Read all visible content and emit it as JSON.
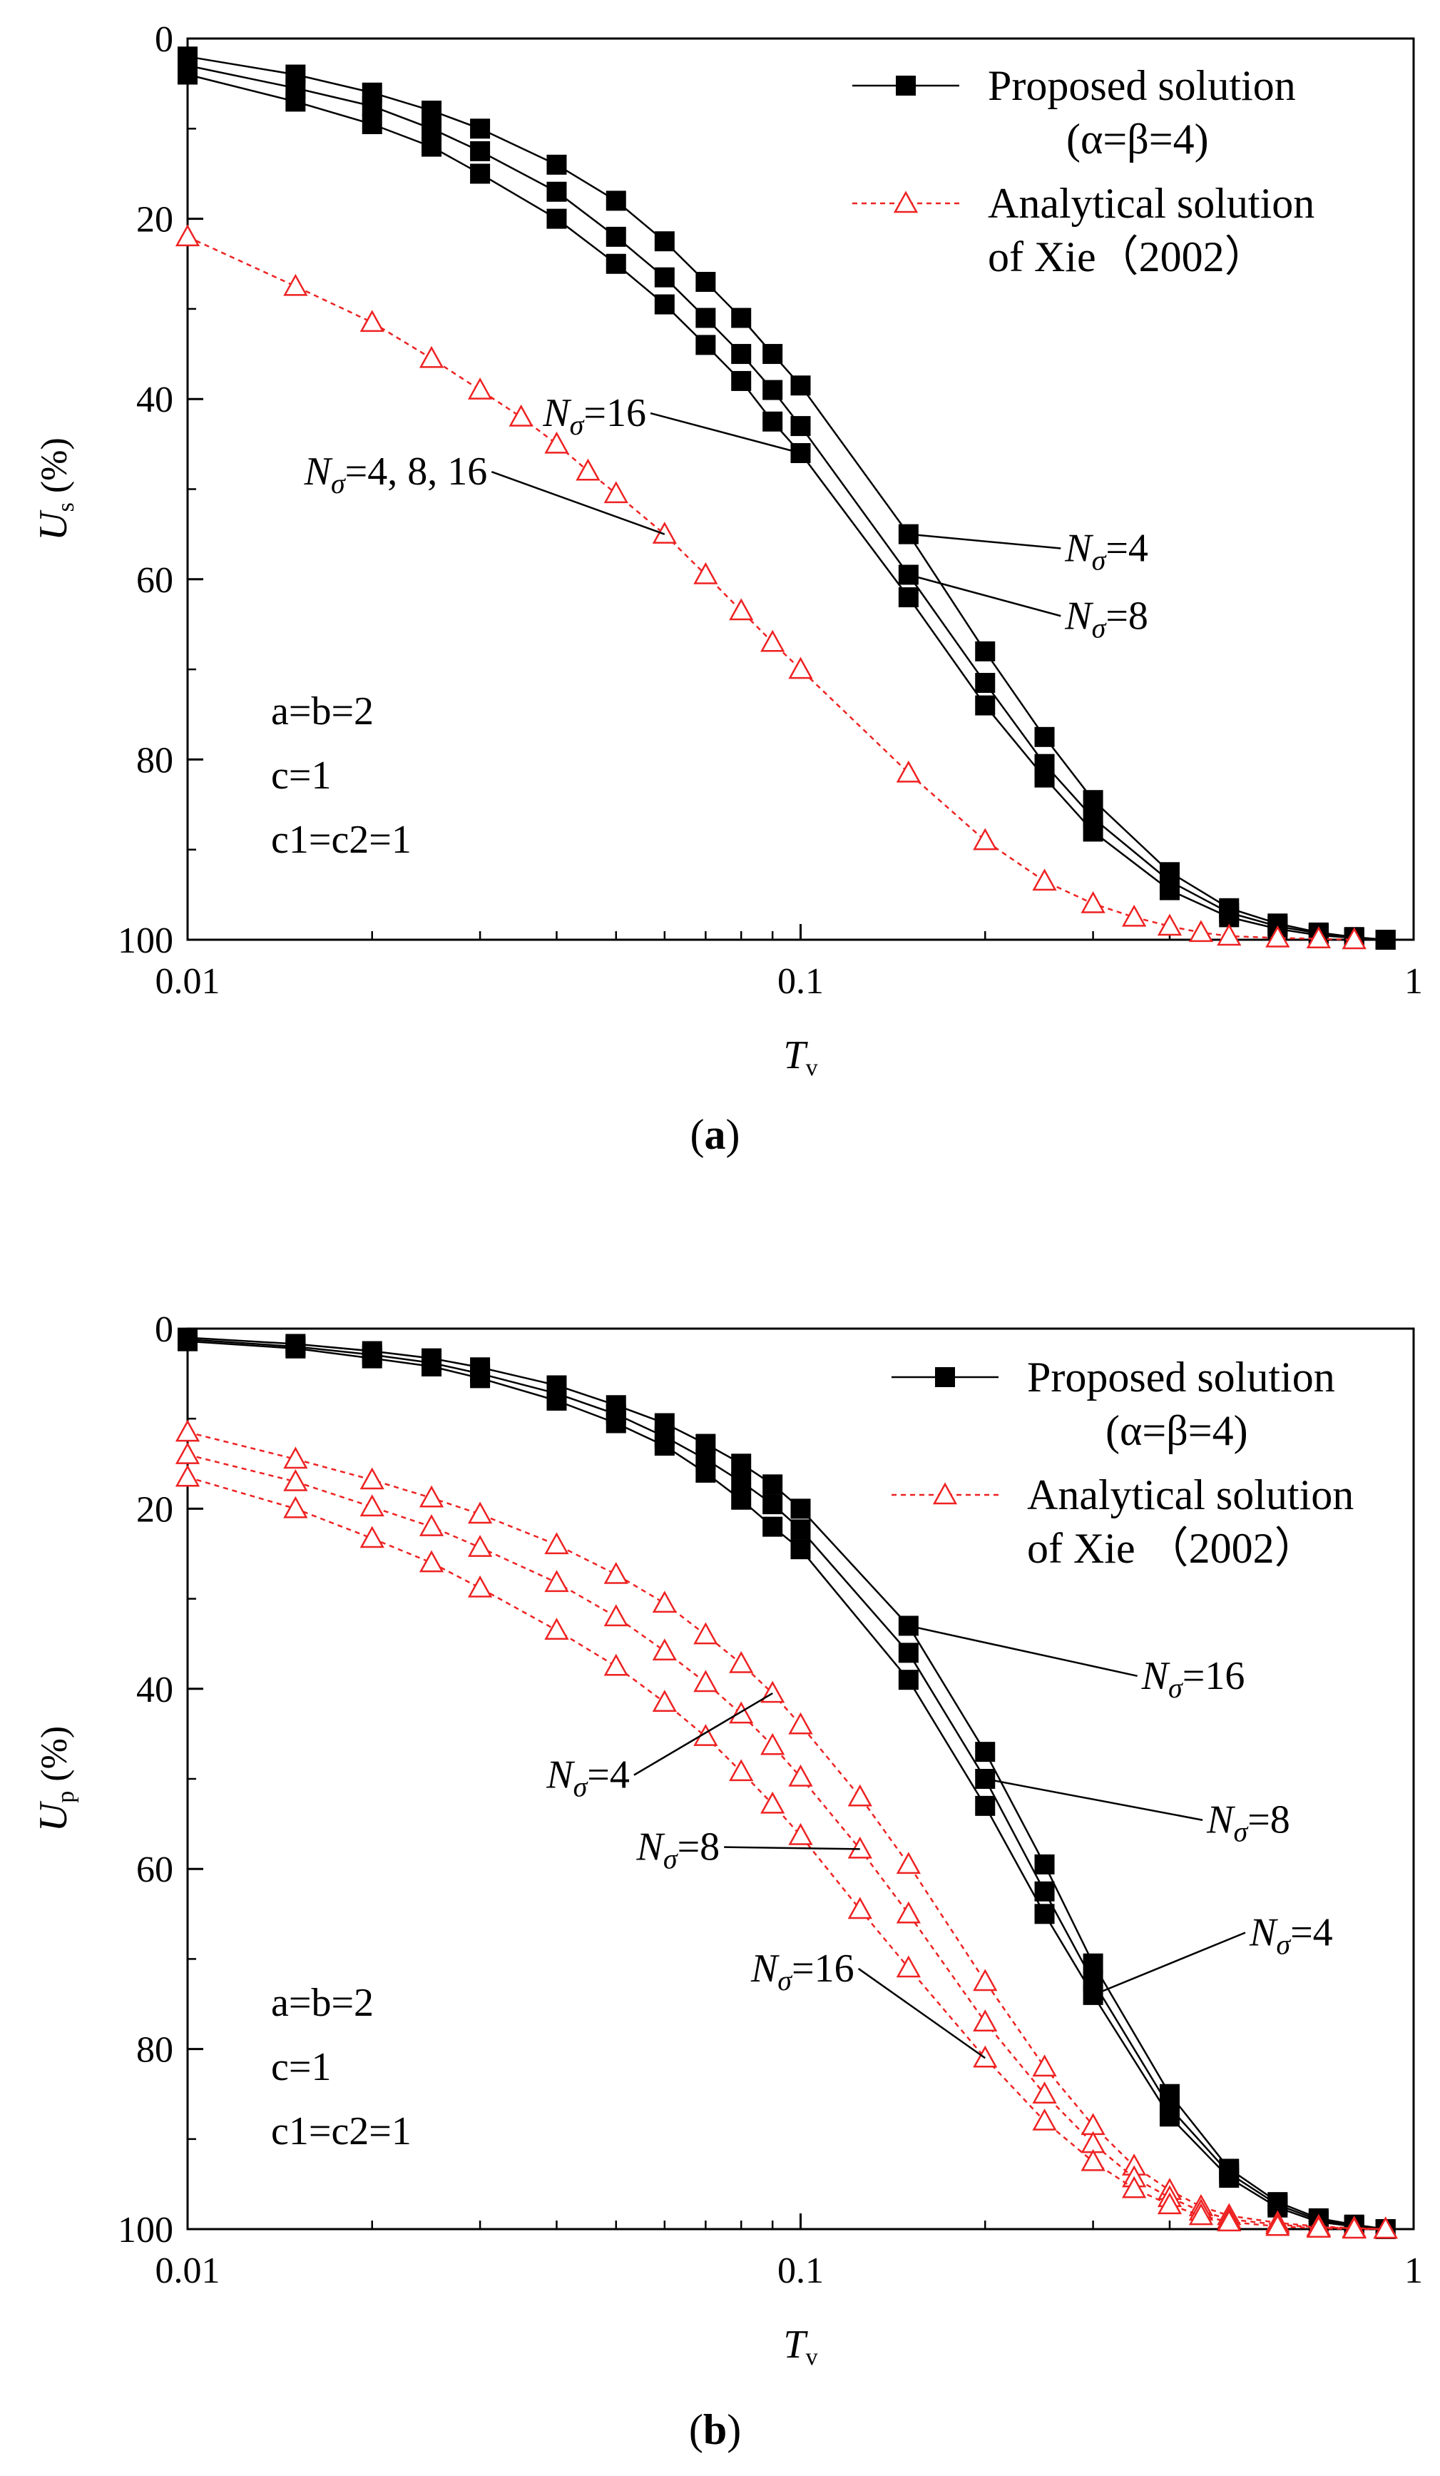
{
  "chart_data": [
    {
      "panel": "a",
      "type": "line",
      "caption": "(a)",
      "xscale": "log",
      "xlim": [
        0.01,
        1
      ],
      "ylim": [
        0,
        100
      ],
      "y_inverted": true,
      "xlabel": {
        "main": "T",
        "sub": "v"
      },
      "ylabel": {
        "main": "U",
        "sub": "s",
        "unit": "(%)"
      },
      "xticks": [
        {
          "v": 0.01,
          "label": "0.01"
        },
        {
          "v": 0.1,
          "label": "0.1"
        },
        {
          "v": 1,
          "label": "1"
        }
      ],
      "yticks": [
        {
          "v": 0,
          "label": "0"
        },
        {
          "v": 20,
          "label": "20"
        },
        {
          "v": 40,
          "label": "40"
        },
        {
          "v": 60,
          "label": "60"
        },
        {
          "v": 80,
          "label": "80"
        },
        {
          "v": 100,
          "label": "100"
        }
      ],
      "legend": [
        {
          "series": "proposed",
          "line1": "Proposed solution",
          "line2": "(α=β=4)"
        },
        {
          "series": "analytical",
          "line1": "Analytical solution",
          "line2": "of Xie（2002）"
        }
      ],
      "params": [
        "a=b=2",
        "c=1",
        "c1=c2=1"
      ],
      "series": [
        {
          "name": "Proposed Nσ=4",
          "style": "proposed",
          "x": [
            0.01,
            0.015,
            0.02,
            0.025,
            0.03,
            0.04,
            0.05,
            0.06,
            0.07,
            0.08,
            0.09,
            0.1,
            0.15,
            0.2,
            0.25,
            0.3,
            0.4,
            0.5,
            0.6,
            0.7,
            0.8,
            0.9
          ],
          "y": [
            2,
            4,
            6,
            8,
            10,
            14,
            18,
            22.5,
            27,
            31,
            35,
            38.5,
            55,
            68,
            77.5,
            84.5,
            92.5,
            96.5,
            98.2,
            99.2,
            99.7,
            100
          ]
        },
        {
          "name": "Proposed Nσ=8",
          "style": "proposed",
          "x": [
            0.01,
            0.015,
            0.02,
            0.025,
            0.03,
            0.04,
            0.05,
            0.06,
            0.07,
            0.08,
            0.09,
            0.1,
            0.15,
            0.2,
            0.25,
            0.3,
            0.4,
            0.5,
            0.6,
            0.7,
            0.8,
            0.9
          ],
          "y": [
            3,
            5.5,
            7.5,
            10,
            12.5,
            17,
            22,
            26.5,
            31,
            35,
            39,
            43,
            59.5,
            71.5,
            80.5,
            86.5,
            93.5,
            97,
            98.5,
            99.3,
            99.8,
            100
          ]
        },
        {
          "name": "Proposed Nσ=16",
          "style": "proposed",
          "x": [
            0.01,
            0.015,
            0.02,
            0.025,
            0.03,
            0.04,
            0.05,
            0.06,
            0.07,
            0.08,
            0.09,
            0.1,
            0.15,
            0.2,
            0.25,
            0.3,
            0.4,
            0.5,
            0.6,
            0.7,
            0.8,
            0.9
          ],
          "y": [
            4,
            7,
            9.5,
            12,
            15,
            20,
            25,
            29.5,
            34,
            38,
            42.5,
            46,
            62,
            74,
            82,
            88,
            94.5,
            97.5,
            98.8,
            99.5,
            99.8,
            100
          ]
        },
        {
          "name": "Analytical Nσ=4, 8, 16",
          "style": "analytical",
          "x": [
            0.01,
            0.015,
            0.02,
            0.025,
            0.03,
            0.035,
            0.04,
            0.045,
            0.05,
            0.06,
            0.07,
            0.08,
            0.09,
            0.1,
            0.15,
            0.2,
            0.25,
            0.3,
            0.35,
            0.4,
            0.45,
            0.5,
            0.6,
            0.7,
            0.8
          ],
          "y": [
            22,
            27.5,
            31.5,
            35.5,
            39,
            42,
            45,
            48,
            50.5,
            55,
            59.5,
            63.5,
            67,
            70,
            81.5,
            89,
            93.5,
            96,
            97.5,
            98.5,
            99.2,
            99.6,
            99.8,
            99.9,
            100
          ]
        }
      ],
      "annotations": [
        {
          "id": "a-ann-16",
          "N": "N",
          "sub": "σ",
          "text": "=16",
          "target_series": 2,
          "target_x": 0.1,
          "text_x": 0.038,
          "text_y": 43
        },
        {
          "id": "a-ann-ana",
          "N": "N",
          "sub": "σ",
          "text": "=4, 8, 16",
          "target_series": 3,
          "target_x": 0.06,
          "text_x": 0.0155,
          "text_y": 49.5
        },
        {
          "id": "a-ann-4",
          "N": "N",
          "sub": "σ",
          "text": "=4",
          "target_series": 0,
          "target_x": 0.15,
          "text_x": 0.27,
          "text_y": 58
        },
        {
          "id": "a-ann-8",
          "N": "N",
          "sub": "σ",
          "text": "=8",
          "target_series": 1,
          "target_x": 0.15,
          "text_x": 0.27,
          "text_y": 65.5
        }
      ]
    },
    {
      "panel": "b",
      "type": "line",
      "caption": "(b)",
      "xscale": "log",
      "xlim": [
        0.01,
        1
      ],
      "ylim": [
        0,
        100
      ],
      "y_inverted": true,
      "xlabel": {
        "main": "T",
        "sub": "v"
      },
      "ylabel": {
        "main": "U",
        "sub": "p",
        "unit": "(%)"
      },
      "xticks": [
        {
          "v": 0.01,
          "label": "0.01"
        },
        {
          "v": 0.1,
          "label": "0.1"
        },
        {
          "v": 1,
          "label": "1"
        }
      ],
      "yticks": [
        {
          "v": 0,
          "label": "0"
        },
        {
          "v": 20,
          "label": "20"
        },
        {
          "v": 40,
          "label": "40"
        },
        {
          "v": 60,
          "label": "60"
        },
        {
          "v": 80,
          "label": "80"
        },
        {
          "v": 100,
          "label": "100"
        }
      ],
      "legend": [
        {
          "series": "proposed",
          "line1": "Proposed solution",
          "line2": "(α=β=4)"
        },
        {
          "series": "analytical",
          "line1": "Analytical solution",
          "line2": "of Xie （2002）"
        }
      ],
      "params": [
        "a=b=2",
        "c=1",
        "c1=c2=1"
      ],
      "series": [
        {
          "name": "Proposed Nσ=16",
          "style": "proposed",
          "x": [
            0.01,
            0.015,
            0.02,
            0.025,
            0.03,
            0.04,
            0.05,
            0.06,
            0.07,
            0.08,
            0.09,
            0.1,
            0.15,
            0.2,
            0.25,
            0.3,
            0.4,
            0.5,
            0.6,
            0.7,
            0.8,
            0.9
          ],
          "y": [
            1,
            1.7,
            2.5,
            3.3,
            4.3,
            6.3,
            8.5,
            10.5,
            12.8,
            15,
            17.3,
            20,
            33,
            47,
            59.5,
            70.5,
            85,
            93.3,
            97,
            98.8,
            99.5,
            100
          ]
        },
        {
          "name": "Proposed Nσ=8",
          "style": "proposed",
          "x": [
            0.01,
            0.015,
            0.02,
            0.025,
            0.03,
            0.04,
            0.05,
            0.06,
            0.07,
            0.08,
            0.09,
            0.1,
            0.15,
            0.2,
            0.25,
            0.3,
            0.4,
            0.5,
            0.6,
            0.7,
            0.8,
            0.9
          ],
          "y": [
            1.2,
            2,
            2.9,
            3.8,
            5,
            7.2,
            9.5,
            12,
            14.5,
            17,
            19.5,
            22.3,
            36,
            50,
            62.5,
            72.5,
            86.5,
            93.8,
            97.3,
            99,
            99.6,
            100
          ]
        },
        {
          "name": "Proposed Nσ=4",
          "style": "proposed",
          "x": [
            0.01,
            0.015,
            0.02,
            0.025,
            0.03,
            0.04,
            0.05,
            0.06,
            0.07,
            0.08,
            0.09,
            0.1,
            0.15,
            0.2,
            0.25,
            0.3,
            0.4,
            0.5,
            0.6,
            0.7,
            0.8,
            0.9
          ],
          "y": [
            1.4,
            2.2,
            3.3,
            4.2,
            5.5,
            8,
            10.5,
            13,
            16,
            19,
            22,
            24.5,
            39,
            53,
            65,
            74,
            87.5,
            94.3,
            97.6,
            99.2,
            99.7,
            100
          ]
        },
        {
          "name": "Analytical Nσ=4",
          "style": "analytical",
          "x": [
            0.01,
            0.015,
            0.02,
            0.025,
            0.03,
            0.04,
            0.05,
            0.06,
            0.07,
            0.08,
            0.09,
            0.1,
            0.125,
            0.15,
            0.2,
            0.25,
            0.3,
            0.35,
            0.4,
            0.45,
            0.5,
            0.6,
            0.7,
            0.8,
            0.9
          ],
          "y": [
            11.5,
            14.5,
            16.8,
            18.8,
            20.6,
            24,
            27.3,
            30.5,
            34,
            37.2,
            40.5,
            44,
            52,
            59.5,
            72.5,
            82,
            88.5,
            93,
            95.7,
            97.5,
            98.5,
            99.3,
            99.7,
            99.9,
            100
          ]
        },
        {
          "name": "Analytical Nσ=8",
          "style": "analytical",
          "x": [
            0.01,
            0.015,
            0.02,
            0.025,
            0.03,
            0.04,
            0.05,
            0.06,
            0.07,
            0.08,
            0.09,
            0.1,
            0.125,
            0.15,
            0.2,
            0.25,
            0.3,
            0.35,
            0.4,
            0.45,
            0.5,
            0.6,
            0.7,
            0.8,
            0.9
          ],
          "y": [
            14,
            17,
            19.8,
            22,
            24.3,
            28.2,
            32,
            35.8,
            39.3,
            42.8,
            46.3,
            49.8,
            57.8,
            65,
            77,
            85,
            90.5,
            94.3,
            96.5,
            98,
            98.9,
            99.5,
            99.8,
            99.9,
            100
          ]
        },
        {
          "name": "Analytical Nσ=16",
          "style": "analytical",
          "x": [
            0.01,
            0.015,
            0.02,
            0.025,
            0.03,
            0.04,
            0.05,
            0.06,
            0.07,
            0.08,
            0.09,
            0.1,
            0.125,
            0.15,
            0.2,
            0.25,
            0.3,
            0.35,
            0.4,
            0.45,
            0.5,
            0.6,
            0.7,
            0.8,
            0.9
          ],
          "y": [
            16.5,
            20,
            23.3,
            26,
            28.8,
            33.5,
            37.5,
            41.5,
            45.3,
            49.2,
            52.8,
            56.3,
            64.5,
            71,
            81,
            88,
            92.5,
            95.5,
            97.3,
            98.5,
            99.2,
            99.7,
            99.9,
            100,
            100
          ]
        }
      ],
      "annotations": [
        {
          "id": "b-ann-p16",
          "N": "N",
          "sub": "σ",
          "text": "=16",
          "target_series": 0,
          "target_x": 0.15,
          "text_x": 0.36,
          "text_y": 40
        },
        {
          "id": "b-ann-p8",
          "N": "N",
          "sub": "σ",
          "text": "=8",
          "target_series": 1,
          "target_x": 0.2,
          "text_x": 0.46,
          "text_y": 56
        },
        {
          "id": "b-ann-p4",
          "N": "N",
          "sub": "σ",
          "text": "=4",
          "target_series": 2,
          "target_x": 0.3,
          "text_x": 0.54,
          "text_y": 68.5
        },
        {
          "id": "b-ann-a4",
          "N": "N",
          "sub": "σ",
          "text": "=4",
          "target_series": 3,
          "target_x": 0.09,
          "text_x": 0.0385,
          "text_y": 51
        },
        {
          "id": "b-ann-a8",
          "N": "N",
          "sub": "σ",
          "text": "=8",
          "target_series": 4,
          "target_x": 0.125,
          "text_x": 0.054,
          "text_y": 59
        },
        {
          "id": "b-ann-a16",
          "N": "N",
          "sub": "σ",
          "text": "=16",
          "target_series": 5,
          "target_x": 0.2,
          "text_x": 0.083,
          "text_y": 72.5
        }
      ]
    }
  ]
}
